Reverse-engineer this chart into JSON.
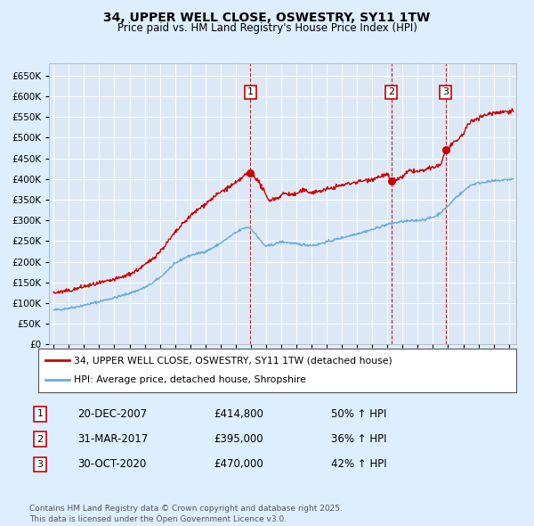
{
  "title": "34, UPPER WELL CLOSE, OSWESTRY, SY11 1TW",
  "subtitle": "Price paid vs. HM Land Registry's House Price Index (HPI)",
  "legend_line1": "34, UPPER WELL CLOSE, OSWESTRY, SY11 1TW (detached house)",
  "legend_line2": "HPI: Average price, detached house, Shropshire",
  "footnote": "Contains HM Land Registry data © Crown copyright and database right 2025.\nThis data is licensed under the Open Government Licence v3.0.",
  "transactions": [
    {
      "num": 1,
      "date": "20-DEC-2007",
      "price": 414800,
      "pct": "50%",
      "dir": "↑",
      "year": 2007.97
    },
    {
      "num": 2,
      "date": "31-MAR-2017",
      "price": 395000,
      "pct": "36%",
      "dir": "↑",
      "year": 2017.25
    },
    {
      "num": 3,
      "date": "30-OCT-2020",
      "price": 470000,
      "pct": "42%",
      "dir": "↑",
      "year": 2020.83
    }
  ],
  "hpi_color": "#6baed6",
  "price_color": "#cc0000",
  "dashed_color": "#cc0000",
  "bg_color": "#ddeeff",
  "plot_bg": "#dce8f5",
  "grid_color": "#ffffff",
  "ylim": [
    0,
    680000
  ],
  "yticks": [
    0,
    50000,
    100000,
    150000,
    200000,
    250000,
    300000,
    350000,
    400000,
    450000,
    500000,
    550000,
    600000,
    650000
  ],
  "xlim_start": 1994.7,
  "xlim_end": 2025.5,
  "xticks": [
    1995,
    1996,
    1997,
    1998,
    1999,
    2000,
    2001,
    2002,
    2003,
    2004,
    2005,
    2006,
    2007,
    2008,
    2009,
    2010,
    2011,
    2012,
    2013,
    2014,
    2015,
    2016,
    2017,
    2018,
    2019,
    2020,
    2021,
    2022,
    2023,
    2024,
    2025
  ]
}
